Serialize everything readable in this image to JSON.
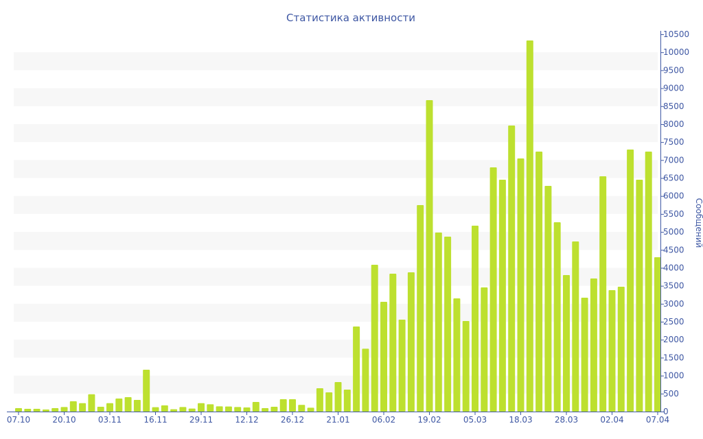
{
  "chart_data": {
    "type": "bar",
    "title": "Статистика активности",
    "xlabel": "",
    "ylabel": "Сообщений",
    "ylim": [
      0,
      10500
    ],
    "ytick_step": 500,
    "y_axis_side": "right",
    "grid": "alternating bands",
    "x_tick_labels": [
      "07.10",
      "20.10",
      "03.11",
      "16.11",
      "29.11",
      "12.12",
      "26.12",
      "21.01",
      "06.02",
      "19.02",
      "05.03",
      "18.03",
      "28.03",
      "02.04",
      "07.04"
    ],
    "x_tick_every": 5,
    "values": [
      95,
      76,
      76,
      57,
      95,
      127,
      286,
      235,
      483,
      134,
      235,
      363,
      401,
      325,
      1165,
      121,
      172,
      64,
      127,
      83,
      235,
      204,
      146,
      140,
      127,
      115,
      267,
      95,
      134,
      344,
      344,
      185,
      108,
      649,
      534,
      821,
      611,
      2367,
      1750,
      4085,
      3054,
      3837,
      2558,
      3875,
      5746,
      8667,
      4982,
      4868,
      3150,
      2520,
      5173,
      3455,
      6796,
      6452,
      7960,
      7044,
      10327,
      7235,
      6280,
      5269,
      3799,
      4734,
      3169,
      3703,
      6547,
      3379,
      3474,
      7292,
      6452,
      7235,
      4295
    ],
    "colors": {
      "bar": "#bde02f",
      "axis": "#3e57a3",
      "band": "#f7f7f7"
    }
  }
}
